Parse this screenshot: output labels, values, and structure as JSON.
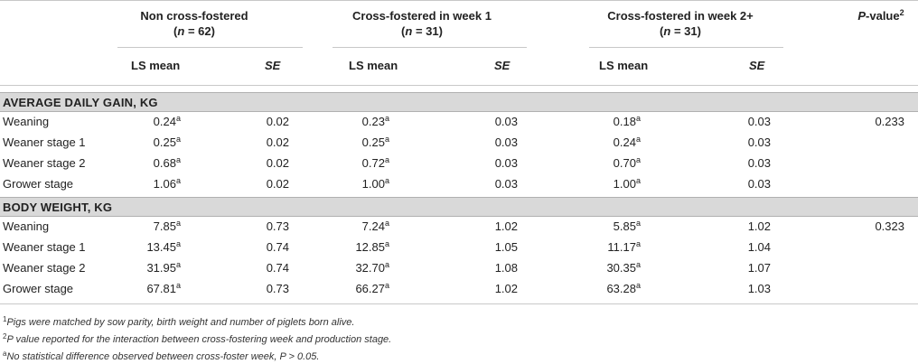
{
  "header": {
    "groups": [
      {
        "line1": "Non cross-fostered",
        "n_prefix": "(",
        "n_var": "n",
        "n_suffix": " = 62)"
      },
      {
        "line1": "Cross-fostered in week 1",
        "n_prefix": "(",
        "n_var": "n",
        "n_suffix": " = 31)"
      },
      {
        "line1": "Cross-fostered in week 2+",
        "n_prefix": "(",
        "n_var": "n",
        "n_suffix": " = 31)"
      }
    ],
    "pvalue_label": "P",
    "pvalue_rest": "-value",
    "pvalue_sup": "2",
    "sub_lsmean": "LS mean",
    "sub_se": "SE"
  },
  "sections": [
    {
      "title": "AVERAGE DAILY GAIN, KG",
      "rows": [
        {
          "label": "Weaning",
          "v": [
            "0.24",
            "0.02",
            "0.23",
            "0.03",
            "0.18",
            "0.03"
          ],
          "sup": "a",
          "p": "0.233"
        },
        {
          "label": "Weaner stage 1",
          "v": [
            "0.25",
            "0.02",
            "0.25",
            "0.03",
            "0.24",
            "0.03"
          ],
          "sup": "a",
          "p": ""
        },
        {
          "label": "Weaner stage 2",
          "v": [
            "0.68",
            "0.02",
            "0.72",
            "0.03",
            "0.70",
            "0.03"
          ],
          "sup": "a",
          "p": ""
        },
        {
          "label": "Grower stage",
          "v": [
            "1.06",
            "0.02",
            "1.00",
            "0.03",
            "1.00",
            "0.03"
          ],
          "sup": "a",
          "p": ""
        }
      ]
    },
    {
      "title": "BODY WEIGHT, KG",
      "rows": [
        {
          "label": "Weaning",
          "v": [
            "7.85",
            "0.73",
            "7.24",
            "1.02",
            "5.85",
            "1.02"
          ],
          "sup": "a",
          "p": "0.323"
        },
        {
          "label": "Weaner stage 1",
          "v": [
            "13.45",
            "0.74",
            "12.85",
            "1.05",
            "11.17",
            "1.04"
          ],
          "sup": "a",
          "p": ""
        },
        {
          "label": "Weaner stage 2",
          "v": [
            "31.95",
            "0.74",
            "32.70",
            "1.08",
            "30.35",
            "1.07"
          ],
          "sup": "a",
          "p": ""
        },
        {
          "label": "Grower stage",
          "v": [
            "67.81",
            "0.73",
            "66.27",
            "1.02",
            "63.28",
            "1.03"
          ],
          "sup": "a",
          "p": ""
        }
      ]
    }
  ],
  "footnotes": [
    {
      "mark": "1",
      "text": "Pigs were matched by sow parity, birth weight and number of piglets born alive."
    },
    {
      "mark": "2",
      "text": "P value reported for the interaction between cross-fostering week and production stage."
    },
    {
      "mark": "a",
      "text": "No statistical difference observed between cross-foster week, P > 0.05."
    }
  ]
}
